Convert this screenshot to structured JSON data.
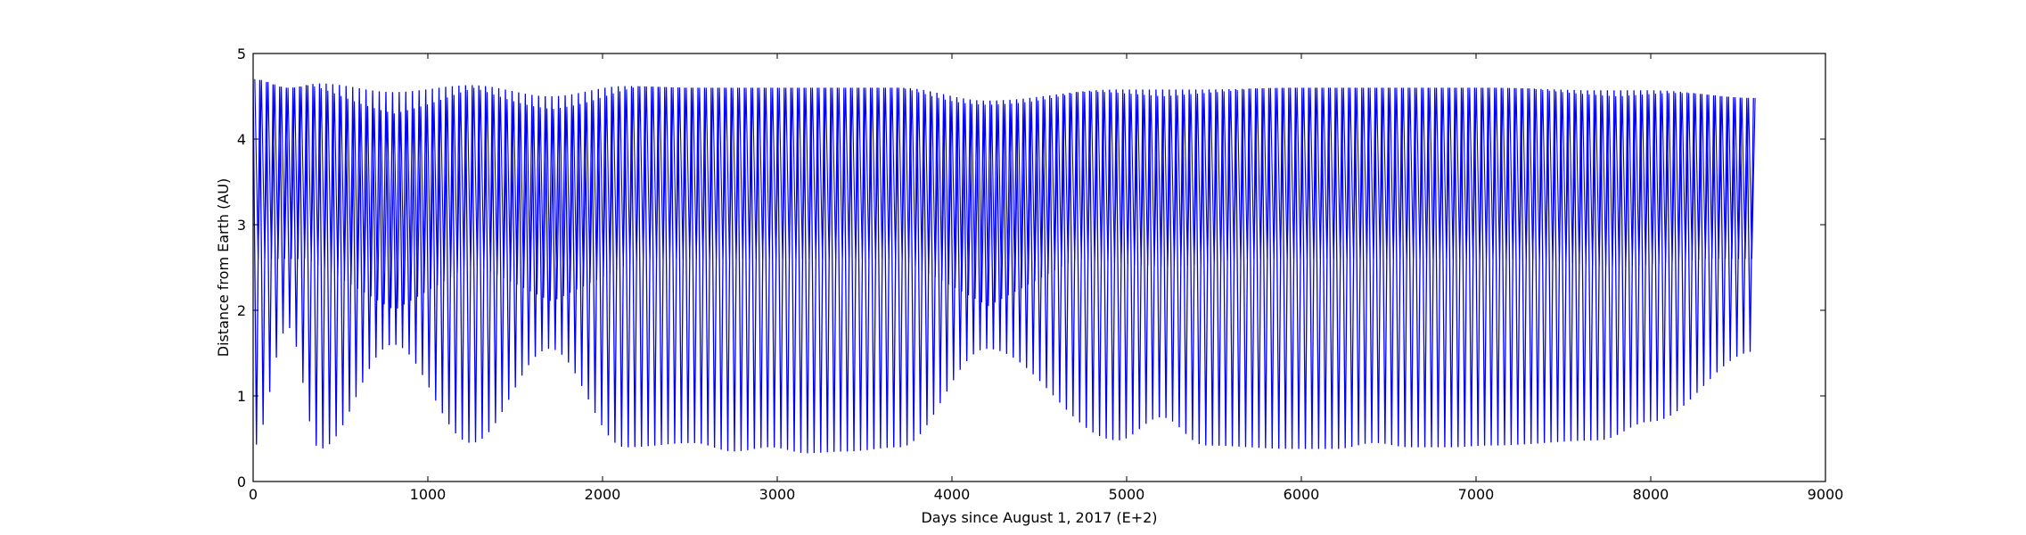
{
  "chart_data": {
    "type": "line",
    "title": "",
    "xlabel": "Days since August 1, 2017 (E+2)",
    "ylabel": "Distance from Earth (AU)",
    "xlim": [
      0,
      9000
    ],
    "ylim": [
      0,
      5
    ],
    "xticks": [
      0,
      1000,
      2000,
      3000,
      4000,
      5000,
      6000,
      7000,
      8000,
      9000
    ],
    "yticks": [
      0,
      1,
      2,
      3,
      4,
      5
    ],
    "xtick_labels": [
      "0",
      "1000",
      "2000",
      "3000",
      "4000",
      "5000",
      "6000",
      "7000",
      "8000",
      "9000"
    ],
    "ytick_labels": [
      "0",
      "1",
      "2",
      "3",
      "4",
      "5"
    ],
    "grid": false,
    "legend": "none",
    "series": [
      {
        "color": "#0000ff",
        "x_start": 0,
        "x_end": 8600,
        "description_points": [
          {
            "x": 0,
            "y_max": 4.7,
            "y_min": 0.4
          },
          {
            "x": 200,
            "y_max": 4.6,
            "y_min": 1.8
          },
          {
            "x": 380,
            "y_max": 4.65,
            "y_min": 0.38
          },
          {
            "x": 800,
            "y_max": 4.55,
            "y_min": 1.6
          },
          {
            "x": 1250,
            "y_max": 4.63,
            "y_min": 0.45
          },
          {
            "x": 1700,
            "y_max": 4.5,
            "y_min": 1.55
          },
          {
            "x": 2130,
            "y_max": 4.62,
            "y_min": 0.4
          },
          {
            "x": 2520,
            "y_max": 4.6,
            "y_min": 0.45
          },
          {
            "x": 2750,
            "y_max": 4.6,
            "y_min": 0.35
          },
          {
            "x": 2960,
            "y_max": 4.6,
            "y_min": 0.4
          },
          {
            "x": 3170,
            "y_max": 4.6,
            "y_min": 0.33
          },
          {
            "x": 3390,
            "y_max": 4.6,
            "y_min": 0.35
          },
          {
            "x": 3700,
            "y_max": 4.6,
            "y_min": 0.4
          },
          {
            "x": 4200,
            "y_max": 4.45,
            "y_min": 1.55
          },
          {
            "x": 4950,
            "y_max": 4.58,
            "y_min": 0.48
          },
          {
            "x": 5200,
            "y_max": 4.58,
            "y_min": 0.75
          },
          {
            "x": 5450,
            "y_max": 4.58,
            "y_min": 0.42
          },
          {
            "x": 5960,
            "y_max": 4.6,
            "y_min": 0.38
          },
          {
            "x": 6200,
            "y_max": 4.6,
            "y_min": 0.38
          },
          {
            "x": 6420,
            "y_max": 4.6,
            "y_min": 0.45
          },
          {
            "x": 6620,
            "y_max": 4.6,
            "y_min": 0.4
          },
          {
            "x": 6850,
            "y_max": 4.6,
            "y_min": 0.4
          },
          {
            "x": 7080,
            "y_max": 4.6,
            "y_min": 0.42
          },
          {
            "x": 7700,
            "y_max": 4.57,
            "y_min": 0.48
          },
          {
            "x": 8000,
            "y_max": 4.57,
            "y_min": 0.7
          },
          {
            "x": 8600,
            "y_max": 4.48,
            "y_min": 1.52
          }
        ],
        "inner_bands": [
          {
            "x": 800,
            "upper": 4.3,
            "mid": 2.95,
            "lower": 2.0
          },
          {
            "x": 1700,
            "upper": 4.35,
            "mid": 2.85,
            "lower": 2.1
          },
          {
            "x": 4200,
            "upper": 4.4,
            "mid": 2.85,
            "lower": 2.05
          },
          {
            "x": 5200,
            "upper": 4.5,
            "mid": 3.9,
            "lower": 2.5
          },
          {
            "x": 7800,
            "upper": 4.5,
            "mid": 3.75,
            "lower": 2.5
          }
        ]
      }
    ]
  }
}
